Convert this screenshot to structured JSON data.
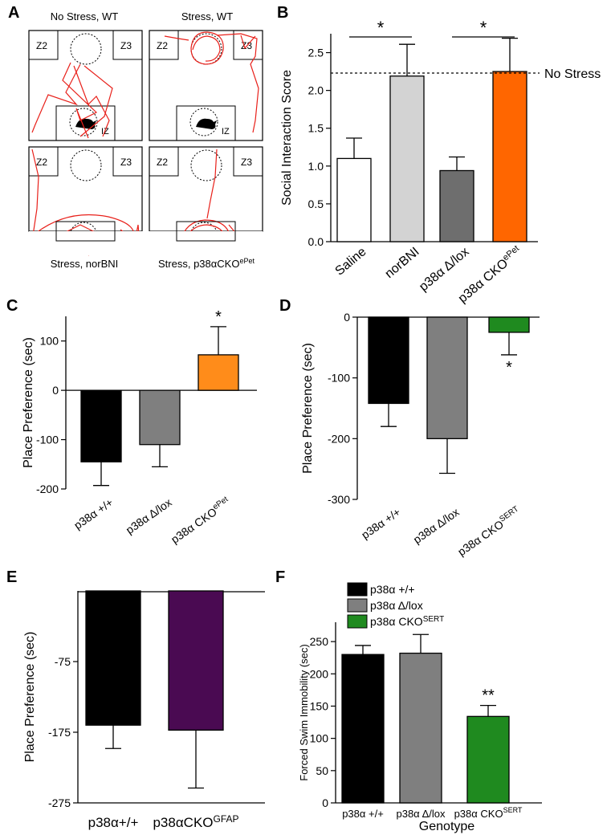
{
  "panel_letters": {
    "a": "A",
    "b": "B",
    "c": "C",
    "d": "D",
    "e": "E",
    "f": "F"
  },
  "panel_a": {
    "arenas": [
      {
        "caption": "No Stress, WT",
        "z2": "Z2",
        "z3": "Z3",
        "iz": "IZ"
      },
      {
        "caption": "Stress, WT",
        "z2": "Z2",
        "z3": "Z3",
        "iz": "IZ"
      },
      {
        "caption": "Stress, norBNI",
        "z2": "Z2",
        "z3": "Z3",
        "iz": "IZ"
      },
      {
        "caption_base": "Stress, p38αCKO",
        "caption_sup": "ePet",
        "z2": "Z2",
        "z3": "Z3",
        "iz": "IZ"
      }
    ],
    "track_color": "#e8201a"
  },
  "colors": {
    "white": "#ffffff",
    "lightgray": "#d3d3d3",
    "gray": "#7f7f7f",
    "darkgray": "#6e6e6e",
    "black": "#000000",
    "orange": "#ff6600",
    "orange2": "#ff8c1a",
    "green": "#1f8a1f",
    "purple": "#4a0a52"
  },
  "chart_data": [
    {
      "panel": "B",
      "type": "bar",
      "ylabel": "Social  Interaction  Score",
      "ylim": [
        0,
        2.75
      ],
      "yticks": [
        0.0,
        0.5,
        1.0,
        1.5,
        2.0,
        2.5
      ],
      "ytick_labels": [
        "0.0",
        "0.5",
        "1.0",
        "1.5",
        "2.0",
        "2.5"
      ],
      "categories": [
        "Saline",
        "norBNI",
        "p38α Δ/lox",
        "p38α CKO"
      ],
      "category_sup": [
        "",
        "",
        "",
        "ePet"
      ],
      "values": [
        1.1,
        2.19,
        0.94,
        2.25
      ],
      "errors": [
        0.27,
        0.42,
        0.18,
        0.44
      ],
      "bar_colors": [
        "#ffffff",
        "#d3d3d3",
        "#6e6e6e",
        "#ff6600"
      ],
      "reference_line": {
        "value": 2.23,
        "label": "No Stress"
      },
      "significance": [
        "*",
        "*"
      ]
    },
    {
      "panel": "C",
      "type": "bar",
      "ylabel": "Place Preference (sec)",
      "ylim": [
        -200,
        150
      ],
      "yticks": [
        -200,
        -100,
        0,
        100
      ],
      "ytick_labels": [
        "-200",
        "-100",
        "0",
        "100"
      ],
      "categories": [
        "p38α +/+",
        "p38α Δ/lox",
        "p38α CKO"
      ],
      "category_sup": [
        "",
        "",
        "ePet"
      ],
      "values": [
        -145,
        -110,
        72
      ],
      "errors": [
        48,
        45,
        57
      ],
      "bar_colors": [
        "#000000",
        "#7f7f7f",
        "#ff8c1a"
      ],
      "annotations": [
        "",
        "",
        "*"
      ]
    },
    {
      "panel": "D",
      "type": "bar",
      "ylabel": "Place Preference (sec)",
      "ylim": [
        -300,
        0
      ],
      "yticks": [
        -300,
        -200,
        -100,
        0
      ],
      "ytick_labels": [
        "-300",
        "-200",
        "-100",
        "0"
      ],
      "categories": [
        "p38α +/+",
        "p38α Δ/lox",
        "p38α CKO"
      ],
      "category_sup": [
        "",
        "",
        "SERT"
      ],
      "values": [
        -142,
        -200,
        -25
      ],
      "errors": [
        38,
        57,
        37
      ],
      "bar_colors": [
        "#000000",
        "#7f7f7f",
        "#1f8a1f"
      ],
      "annotations": [
        "",
        "",
        "*"
      ]
    },
    {
      "panel": "E",
      "type": "bar",
      "ylabel": "Place Preference (sec)",
      "ylim": [
        -275,
        25
      ],
      "yticks": [
        -275,
        -175,
        -75
      ],
      "ytick_labels": [
        "-275",
        "-175",
        "-75"
      ],
      "categories": [
        "p38α+/+",
        "p38αCKO"
      ],
      "category_sup": [
        "",
        "GFAP"
      ],
      "values": [
        -165,
        -172
      ],
      "errors": [
        33,
        82
      ],
      "bar_colors": [
        "#000000",
        "#4a0a52"
      ]
    },
    {
      "panel": "F",
      "type": "bar",
      "ylabel": "Forced  Swim Immobility  (sec)",
      "xlabel": "Genotype",
      "ylim": [
        0,
        280
      ],
      "yticks": [
        0,
        50,
        100,
        150,
        200,
        250
      ],
      "ytick_labels": [
        "0",
        "50",
        "100",
        "150",
        "200",
        "250"
      ],
      "categories": [
        "p38α +/+",
        "p38α Δ/lox",
        "p38α CKO"
      ],
      "category_sup": [
        "",
        "",
        "SERT"
      ],
      "values": [
        230,
        232,
        134
      ],
      "errors": [
        14,
        29,
        17
      ],
      "bar_colors": [
        "#000000",
        "#7f7f7f",
        "#1f8a1f"
      ],
      "annotations": [
        "",
        "",
        "**"
      ],
      "legend": [
        {
          "label": "p38α +/+",
          "sup": "",
          "color": "#000000"
        },
        {
          "label": "p38α Δ/lox",
          "sup": "",
          "color": "#7f7f7f"
        },
        {
          "label": "p38α CKO",
          "sup": "SERT",
          "color": "#1f8a1f"
        }
      ]
    }
  ]
}
